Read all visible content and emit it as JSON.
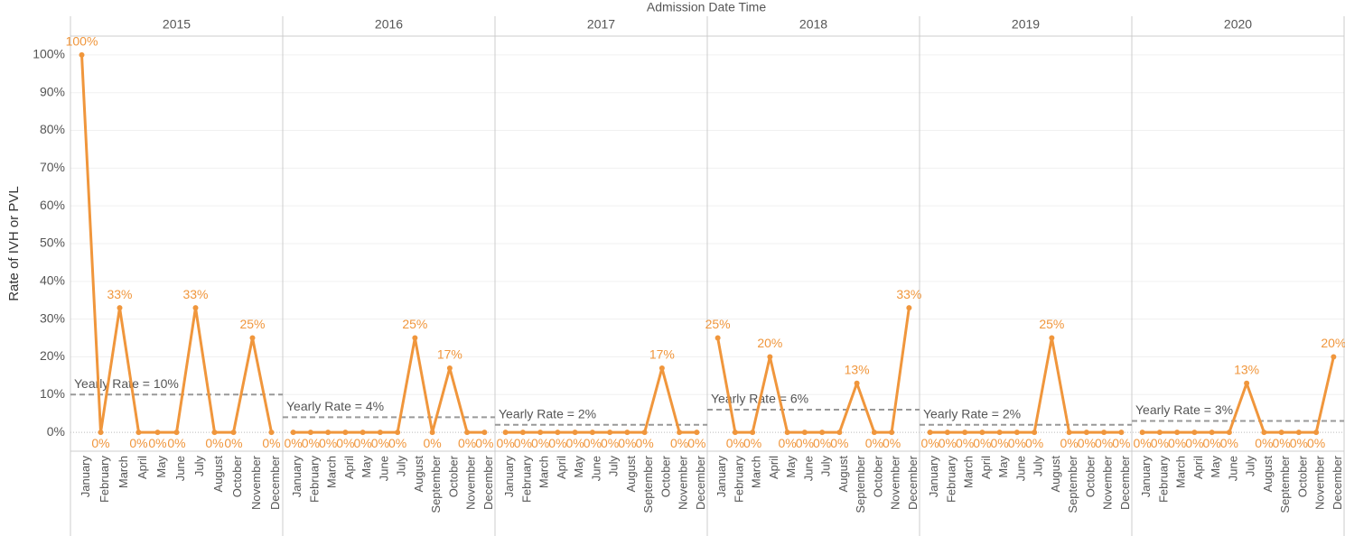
{
  "chart_data": {
    "type": "line",
    "title": "Admission Date Time",
    "y_label": "Rate of IVH or PVL",
    "color": "#f0963c",
    "ylim": [
      -5,
      105
    ],
    "yticks": [
      {
        "value": 0,
        "label": "0%"
      },
      {
        "value": 10,
        "label": "10%"
      },
      {
        "value": 20,
        "label": "20%"
      },
      {
        "value": 30,
        "label": "30%"
      },
      {
        "value": 40,
        "label": "40%"
      },
      {
        "value": 50,
        "label": "50%"
      },
      {
        "value": 60,
        "label": "60%"
      },
      {
        "value": 70,
        "label": "70%"
      },
      {
        "value": 80,
        "label": "80%"
      },
      {
        "value": 90,
        "label": "90%"
      },
      {
        "value": 100,
        "label": "100%"
      }
    ],
    "grid": true,
    "panels": [
      {
        "year": "2015",
        "categories": [
          "January",
          "February",
          "March",
          "April",
          "May",
          "June",
          "July",
          "August",
          "October",
          "November",
          "December"
        ],
        "values": [
          100,
          0,
          33,
          0,
          0,
          0,
          33,
          0,
          0,
          25,
          0
        ],
        "value_labels": [
          "100%",
          "0%",
          "33%",
          "0%",
          "0%",
          "0%",
          "33%",
          "0%",
          "0%",
          "25%",
          "0%"
        ],
        "reference": {
          "value": 10,
          "label": "Yearly Rate = 10%"
        }
      },
      {
        "year": "2016",
        "categories": [
          "January",
          "February",
          "March",
          "April",
          "May",
          "June",
          "July",
          "August",
          "September",
          "October",
          "November",
          "December"
        ],
        "values": [
          0,
          0,
          0,
          0,
          0,
          0,
          0,
          25,
          0,
          17,
          0,
          0
        ],
        "value_labels": [
          "0%",
          "0%",
          "0%",
          "0%",
          "0%",
          "0%",
          "0%",
          "25%",
          "0%",
          "17%",
          "0%",
          "0%"
        ],
        "reference": {
          "value": 4,
          "label": "Yearly Rate = 4%"
        }
      },
      {
        "year": "2017",
        "categories": [
          "January",
          "February",
          "March",
          "April",
          "May",
          "June",
          "July",
          "August",
          "September",
          "October",
          "November",
          "December"
        ],
        "values": [
          0,
          0,
          0,
          0,
          0,
          0,
          0,
          0,
          0,
          17,
          0,
          0
        ],
        "value_labels": [
          "0%",
          "0%",
          "0%",
          "0%",
          "0%",
          "0%",
          "0%",
          "0%",
          "0%",
          "17%",
          "0%",
          "0%"
        ],
        "reference": {
          "value": 2,
          "label": "Yearly Rate = 2%"
        }
      },
      {
        "year": "2018",
        "categories": [
          "January",
          "February",
          "March",
          "April",
          "May",
          "June",
          "July",
          "August",
          "September",
          "October",
          "November",
          "December"
        ],
        "values": [
          25,
          0,
          0,
          20,
          0,
          0,
          0,
          0,
          13,
          0,
          0,
          33
        ],
        "value_labels": [
          "25%",
          "0%",
          "0%",
          "20%",
          "0%",
          "0%",
          "0%",
          "0%",
          "13%",
          "0%",
          "0%",
          "33%"
        ],
        "reference": {
          "value": 6,
          "label": "Yearly Rate = 6%"
        }
      },
      {
        "year": "2019",
        "categories": [
          "January",
          "February",
          "March",
          "April",
          "May",
          "June",
          "July",
          "August",
          "September",
          "October",
          "November",
          "December"
        ],
        "values": [
          0,
          0,
          0,
          0,
          0,
          0,
          0,
          25,
          0,
          0,
          0,
          0
        ],
        "value_labels": [
          "0%",
          "0%",
          "0%",
          "0%",
          "0%",
          "0%",
          "0%",
          "25%",
          "0%",
          "0%",
          "0%",
          "0%"
        ],
        "reference": {
          "value": 2,
          "label": "Yearly Rate = 2%"
        }
      },
      {
        "year": "2020",
        "categories": [
          "January",
          "February",
          "March",
          "April",
          "May",
          "June",
          "July",
          "August",
          "September",
          "October",
          "November",
          "December"
        ],
        "values": [
          0,
          0,
          0,
          0,
          0,
          0,
          13,
          0,
          0,
          0,
          0,
          20
        ],
        "value_labels": [
          "0%",
          "0%",
          "0%",
          "0%",
          "0%",
          "0%",
          "13%",
          "0%",
          "0%",
          "0%",
          "0%",
          "20%"
        ],
        "reference": {
          "value": 3,
          "label": "Yearly Rate = 3%"
        }
      }
    ]
  }
}
